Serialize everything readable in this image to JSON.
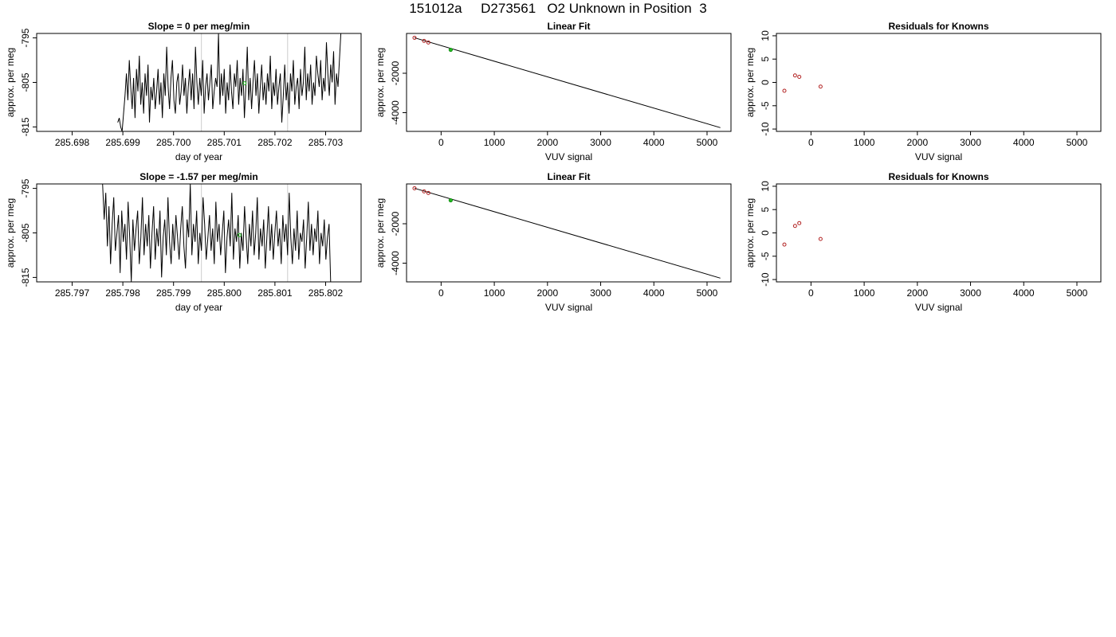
{
  "figure": {
    "title": "151012a     D273561   O2 Unknown in Position  3"
  },
  "colors": {
    "trace": "#000000",
    "known_point": "#b22222",
    "unknown_point": "#22bb22",
    "marker_line": "#cccccc"
  },
  "chart_data": [
    {
      "type": "line",
      "title": "Slope =  0  per meg/min",
      "xlabel": "day of year",
      "ylabel": "approx. per meg",
      "xlim": [
        285.6973,
        285.7037
      ],
      "ylim": [
        -816,
        -794
      ],
      "xticks": [
        285.698,
        285.699,
        285.7,
        285.701,
        285.702,
        285.703
      ],
      "xtick_labels": [
        "285.698",
        "285.699",
        "285.700",
        "285.701",
        "285.702",
        "285.703"
      ],
      "yticks": [
        -795,
        -805,
        -815
      ],
      "ytick_labels": [
        "-795",
        "-805",
        "-815"
      ],
      "grid": false,
      "vlines": [
        285.70055,
        285.70225
      ],
      "marker": {
        "x": 285.7014,
        "y": -805.2
      },
      "series": [
        {
          "x_start": 285.6989,
          "x_end": 285.7033,
          "seed": 17,
          "y": [
            -814,
            -813,
            -815,
            -816,
            -812,
            -808,
            -803,
            -809,
            -800,
            -806,
            -811,
            -804,
            -813,
            -802,
            -807,
            -799,
            -810,
            -805,
            -812,
            -803,
            -808,
            -801,
            -814,
            -806,
            -809,
            -804,
            -811,
            -807,
            -802,
            -810,
            -805,
            -813,
            -803,
            -808,
            -797,
            -806,
            -811,
            -804,
            -800,
            -809,
            -812,
            -805,
            -803,
            -810,
            -807,
            -801,
            -808,
            -804,
            -812,
            -806,
            -802,
            -809,
            -803,
            -811,
            -797,
            -805,
            -810,
            -804,
            -808,
            -800,
            -812,
            -806,
            -803,
            -809,
            -805,
            -801,
            -811,
            -807,
            -804,
            -806,
            -794,
            -810,
            -803,
            -808,
            -802,
            -812,
            -805,
            -809,
            -801,
            -807,
            -811,
            -803,
            -806,
            -800,
            -810,
            -804,
            -808,
            -802,
            -813,
            -806,
            -797,
            -809,
            -804,
            -811,
            -805,
            -800,
            -808,
            -803,
            -812,
            -806,
            -801,
            -809,
            -805,
            -810,
            -803,
            -807,
            -799,
            -811,
            -805,
            -808,
            -802,
            -810,
            -806,
            -803,
            -814,
            -808,
            -801,
            -809,
            -805,
            -812,
            -803,
            -807,
            -800,
            -810,
            -806,
            -804,
            -811,
            -802,
            -808,
            -805,
            -797,
            -809,
            -803,
            -807,
            -801,
            -810,
            -805,
            -808,
            -799,
            -803,
            -806,
            -800,
            -809,
            -804,
            -807,
            -796,
            -803,
            -808,
            -801,
            -805,
            -798,
            -810,
            -803,
            -806,
            -800,
            -794
          ]
        }
      ]
    },
    {
      "type": "scatter",
      "title": "Linear Fit",
      "xlabel": "VUV signal",
      "ylabel": "approx. per meg",
      "xlim": [
        -650,
        5450
      ],
      "ylim": [
        -4950,
        20
      ],
      "xticks": [
        0,
        1000,
        2000,
        3000,
        4000,
        5000
      ],
      "xtick_labels": [
        "0",
        "1000",
        "2000",
        "3000",
        "4000",
        "5000"
      ],
      "yticks": [
        -2000,
        -4000
      ],
      "ytick_labels": [
        "-2000",
        "-4000"
      ],
      "grid": false,
      "fit_line": {
        "x": [
          -500,
          5250
        ],
        "y": [
          -200,
          -4760
        ]
      },
      "knowns": {
        "x": [
          -500,
          -320,
          -240
        ],
        "y": [
          -200,
          -360,
          -440
        ]
      },
      "unknown": {
        "x": 180,
        "y": -810
      }
    },
    {
      "type": "scatter",
      "title": "Residuals for Knowns",
      "xlabel": "VUV signal",
      "ylabel": "approx. per meg",
      "xlim": [
        -650,
        5450
      ],
      "ylim": [
        -10.5,
        10.5
      ],
      "xticks": [
        0,
        1000,
        2000,
        3000,
        4000,
        5000
      ],
      "xtick_labels": [
        "0",
        "1000",
        "2000",
        "3000",
        "4000",
        "5000"
      ],
      "yticks": [
        10,
        5,
        0,
        -5,
        -10
      ],
      "ytick_labels": [
        "10",
        "5",
        "0",
        "-5",
        "-10"
      ],
      "grid": false,
      "points": {
        "x": [
          -500,
          -300,
          -220,
          180
        ],
        "y": [
          -1.8,
          1.5,
          1.2,
          -0.9
        ]
      }
    },
    {
      "type": "line",
      "title": "Slope =  -1.57  per meg/min",
      "xlabel": "day of year",
      "ylabel": "approx. per meg",
      "xlim": [
        285.7963,
        285.8027
      ],
      "ylim": [
        -816,
        -794
      ],
      "xticks": [
        285.797,
        285.798,
        285.799,
        285.8,
        285.801,
        285.802
      ],
      "xtick_labels": [
        "285.797",
        "285.798",
        "285.799",
        "285.800",
        "285.801",
        "285.802"
      ],
      "yticks": [
        -795,
        -805,
        -815
      ],
      "ytick_labels": [
        "-795",
        "-805",
        "-815"
      ],
      "grid": false,
      "vlines": [
        285.79955,
        285.80125
      ],
      "marker": {
        "x": 285.8003,
        "y": -805.5
      },
      "series": [
        {
          "x_start": 285.7976,
          "x_end": 285.8021,
          "y": [
            -794,
            -802,
            -796,
            -808,
            -799,
            -812,
            -803,
            -797,
            -809,
            -805,
            -801,
            -814,
            -800,
            -807,
            -803,
            -811,
            -798,
            -806,
            -816,
            -802,
            -809,
            -804,
            -800,
            -812,
            -806,
            -797,
            -810,
            -803,
            -808,
            -801,
            -813,
            -805,
            -799,
            -811,
            -804,
            -808,
            -800,
            -815,
            -806,
            -802,
            -810,
            -797,
            -807,
            -812,
            -803,
            -809,
            -801,
            -806,
            -811,
            -804,
            -799,
            -808,
            -813,
            -802,
            -806,
            -794,
            -810,
            -803,
            -807,
            -800,
            -812,
            -805,
            -809,
            -797,
            -803,
            -811,
            -806,
            -801,
            -809,
            -804,
            -812,
            -798,
            -807,
            -803,
            -810,
            -805,
            -800,
            -814,
            -806,
            -802,
            -808,
            -796,
            -811,
            -804,
            -807,
            -801,
            -813,
            -805,
            -809,
            -799,
            -806,
            -812,
            -803,
            -808,
            -800,
            -810,
            -805,
            -797,
            -811,
            -804,
            -808,
            -802,
            -813,
            -806,
            -799,
            -809,
            -803,
            -811,
            -805,
            -800,
            -808,
            -804,
            -812,
            -801,
            -807,
            -803,
            -810,
            -796,
            -806,
            -812,
            -804,
            -809,
            -800,
            -811,
            -805,
            -807,
            -802,
            -813,
            -806,
            -798,
            -809,
            -803,
            -810,
            -804,
            -807,
            -800,
            -812,
            -805,
            -808,
            -802,
            -811,
            -806,
            -803,
            -816
          ]
        }
      ]
    },
    {
      "type": "scatter",
      "title": "Linear Fit",
      "xlabel": "VUV signal",
      "ylabel": "approx. per meg",
      "xlim": [
        -650,
        5450
      ],
      "ylim": [
        -4950,
        20
      ],
      "xticks": [
        0,
        1000,
        2000,
        3000,
        4000,
        5000
      ],
      "xtick_labels": [
        "0",
        "1000",
        "2000",
        "3000",
        "4000",
        "5000"
      ],
      "yticks": [
        -2000,
        -4000
      ],
      "ytick_labels": [
        "-2000",
        "-4000"
      ],
      "grid": false,
      "fit_line": {
        "x": [
          -500,
          5250
        ],
        "y": [
          -200,
          -4760
        ]
      },
      "knowns": {
        "x": [
          -500,
          -320,
          -240
        ],
        "y": [
          -200,
          -360,
          -440
        ]
      },
      "unknown": {
        "x": 180,
        "y": -810
      }
    },
    {
      "type": "scatter",
      "title": "Residuals for Knowns",
      "xlabel": "VUV signal",
      "ylabel": "approx. per meg",
      "xlim": [
        -650,
        5450
      ],
      "ylim": [
        -10.5,
        10.5
      ],
      "xticks": [
        0,
        1000,
        2000,
        3000,
        4000,
        5000
      ],
      "xtick_labels": [
        "0",
        "1000",
        "2000",
        "3000",
        "4000",
        "5000"
      ],
      "yticks": [
        10,
        5,
        0,
        -5,
        -10
      ],
      "ytick_labels": [
        "10",
        "5",
        "0",
        "-5",
        "-10"
      ],
      "grid": false,
      "points": {
        "x": [
          -500,
          -300,
          -220,
          180
        ],
        "y": [
          -2.5,
          1.5,
          2.1,
          -1.3
        ]
      }
    }
  ]
}
